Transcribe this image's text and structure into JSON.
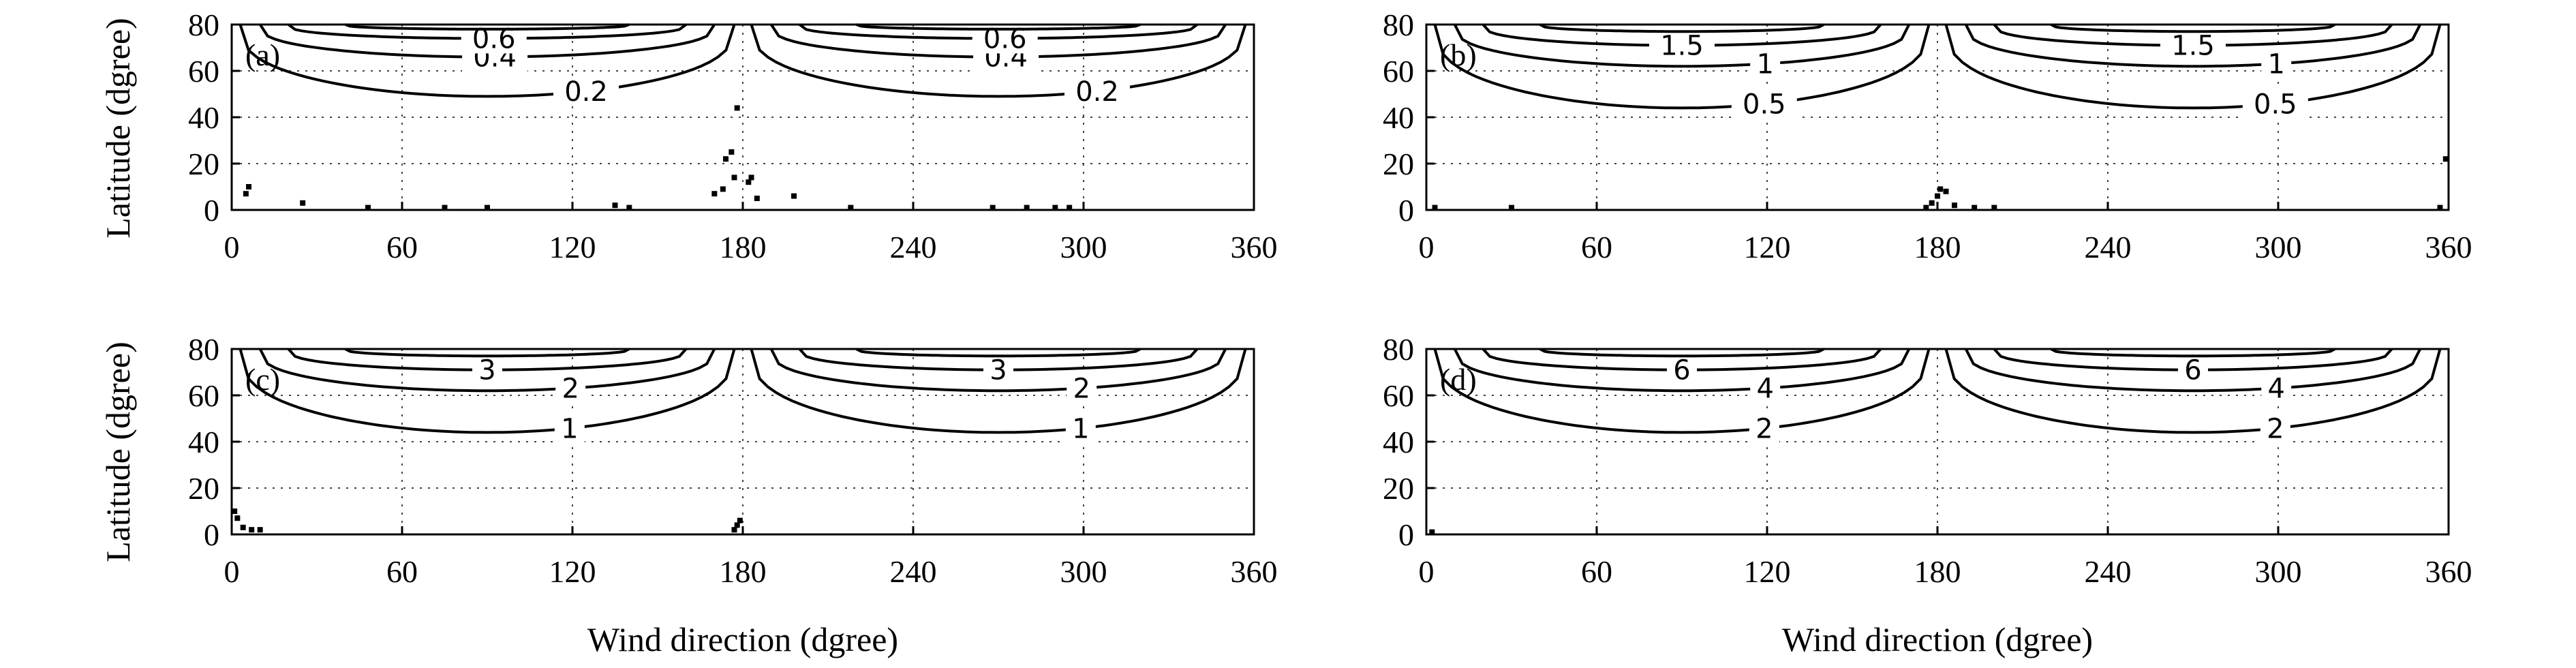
{
  "figure": {
    "x_axis_title": "Wind direction (dgree)",
    "y_axis_title": "Latitude (dgree)"
  },
  "chart_data": [
    {
      "type": "contour",
      "panel_label": "(a)",
      "xlim": [
        0,
        360
      ],
      "ylim": [
        0,
        80
      ],
      "xticks": [
        0,
        60,
        120,
        180,
        240,
        300,
        360
      ],
      "yticks": [
        0,
        20,
        40,
        60,
        80
      ],
      "grid": true,
      "contours": [
        {
          "level": "0.2",
          "trough_lat": 49,
          "label_x": 126
        },
        {
          "level": "0.4",
          "trough_lat": 66,
          "label_x": 93
        },
        {
          "level": "0.6",
          "trough_lat": 74,
          "label_x": 93
        },
        {
          "level": "",
          "trough_lat": 78,
          "label_x": null
        }
      ],
      "noise": [
        [
          5,
          7
        ],
        [
          6,
          10
        ],
        [
          25,
          3
        ],
        [
          48,
          1
        ],
        [
          75,
          1
        ],
        [
          90,
          1
        ],
        [
          135,
          2
        ],
        [
          140,
          1
        ],
        [
          170,
          7
        ],
        [
          173,
          9
        ],
        [
          174,
          22
        ],
        [
          176,
          25
        ],
        [
          177,
          14
        ],
        [
          178,
          44
        ],
        [
          182,
          12
        ],
        [
          183,
          14
        ],
        [
          185,
          5
        ],
        [
          198,
          6
        ],
        [
          218,
          1
        ],
        [
          268,
          1
        ],
        [
          280,
          1
        ],
        [
          290,
          1
        ],
        [
          295,
          1
        ]
      ]
    },
    {
      "type": "contour",
      "panel_label": "(b)",
      "xlim": [
        0,
        360
      ],
      "ylim": [
        0,
        80
      ],
      "xticks": [
        0,
        60,
        120,
        180,
        240,
        300,
        360
      ],
      "yticks": [
        0,
        20,
        40,
        60,
        80
      ],
      "grid": true,
      "contours": [
        {
          "level": "0.5",
          "trough_lat": 44,
          "label_x": 120
        },
        {
          "level": "1",
          "trough_lat": 62,
          "label_x": 120
        },
        {
          "level": "1.5",
          "trough_lat": 71,
          "label_x": 90
        },
        {
          "level": "",
          "trough_lat": 77,
          "label_x": null
        }
      ],
      "noise": [
        [
          3,
          1
        ],
        [
          30,
          1
        ],
        [
          176,
          1
        ],
        [
          178,
          3
        ],
        [
          180,
          6
        ],
        [
          181,
          9
        ],
        [
          183,
          8
        ],
        [
          186,
          2
        ],
        [
          193,
          1
        ],
        [
          200,
          1
        ],
        [
          357,
          1
        ],
        [
          359,
          22
        ]
      ]
    },
    {
      "type": "contour",
      "panel_label": "(c)",
      "xlim": [
        0,
        360
      ],
      "ylim": [
        0,
        80
      ],
      "xticks": [
        0,
        60,
        120,
        180,
        240,
        300,
        360
      ],
      "yticks": [
        0,
        20,
        40,
        60,
        80
      ],
      "grid": true,
      "contours": [
        {
          "level": "1",
          "trough_lat": 44,
          "label_x": 120
        },
        {
          "level": "2",
          "trough_lat": 62,
          "label_x": 120
        },
        {
          "level": "3",
          "trough_lat": 71,
          "label_x": 90
        },
        {
          "level": "",
          "trough_lat": 77,
          "label_x": null
        }
      ],
      "noise": [
        [
          1,
          10
        ],
        [
          2,
          7
        ],
        [
          4,
          3
        ],
        [
          7,
          2
        ],
        [
          10,
          2
        ],
        [
          177,
          2
        ],
        [
          178,
          4
        ],
        [
          179,
          6
        ]
      ]
    },
    {
      "type": "contour",
      "panel_label": "(d)",
      "xlim": [
        0,
        360
      ],
      "ylim": [
        0,
        80
      ],
      "xticks": [
        0,
        60,
        120,
        180,
        240,
        300,
        360
      ],
      "yticks": [
        0,
        20,
        40,
        60,
        80
      ],
      "grid": true,
      "contours": [
        {
          "level": "2",
          "trough_lat": 44,
          "label_x": 120
        },
        {
          "level": "4",
          "trough_lat": 62,
          "label_x": 120
        },
        {
          "level": "6",
          "trough_lat": 71,
          "label_x": 90
        },
        {
          "level": "",
          "trough_lat": 77,
          "label_x": null
        }
      ],
      "noise": [
        [
          2,
          1
        ]
      ]
    }
  ]
}
